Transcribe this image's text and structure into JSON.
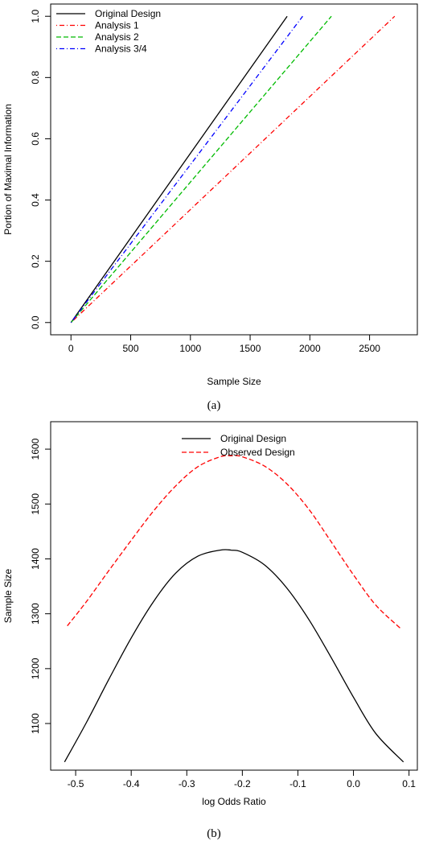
{
  "chart_data": [
    {
      "type": "line",
      "panel_label": "(a)",
      "xlabel": "Sample Size",
      "ylabel": "Portion of Maximal Information",
      "xlim": [
        -170,
        2900
      ],
      "ylim": [
        -0.04,
        1.04
      ],
      "xticks": [
        0,
        500,
        1000,
        1500,
        2000,
        2500
      ],
      "yticks": [
        0.0,
        0.2,
        0.4,
        0.6,
        0.8,
        1.0
      ],
      "xtick_labels": [
        "0",
        "500",
        "1000",
        "1500",
        "2000",
        "2500"
      ],
      "ytick_labels": [
        "0.0",
        "0.2",
        "0.4",
        "0.6",
        "0.8",
        "1.0"
      ],
      "grid": false,
      "legend_position": "top-left",
      "series": [
        {
          "name": "Original Design",
          "color": "#000000",
          "dash": "solid",
          "x": [
            0,
            1810
          ],
          "y": [
            0,
            1.0
          ]
        },
        {
          "name": "Analysis 1",
          "color": "#ff0000",
          "dash": "dotdash",
          "x": [
            0,
            2710
          ],
          "y": [
            0,
            1.0
          ]
        },
        {
          "name": "Analysis 2",
          "color": "#00bb00",
          "dash": "dashed",
          "x": [
            0,
            2180
          ],
          "y": [
            0,
            1.0
          ]
        },
        {
          "name": "Analysis 3/4",
          "color": "#0000ff",
          "dash": "dotdash",
          "x": [
            0,
            1940
          ],
          "y": [
            0,
            1.0
          ]
        }
      ]
    },
    {
      "type": "line",
      "panel_label": "(b)",
      "xlabel": "log Odds Ratio",
      "ylabel": "Sample Size",
      "xlim": [
        -0.545,
        0.115
      ],
      "ylim": [
        1015,
        1650
      ],
      "xticks": [
        -0.5,
        -0.4,
        -0.3,
        -0.2,
        -0.1,
        0.0,
        0.1
      ],
      "yticks": [
        1100,
        1200,
        1300,
        1400,
        1500,
        1600
      ],
      "xtick_labels": [
        "-0.5",
        "-0.4",
        "-0.3",
        "-0.2",
        "-0.1",
        "0.0",
        "0.1"
      ],
      "ytick_labels": [
        "1100",
        "1200",
        "1300",
        "1400",
        "1500",
        "1600"
      ],
      "grid": false,
      "legend_position": "top-center",
      "series": [
        {
          "name": "Original Design",
          "color": "#000000",
          "dash": "solid",
          "x": [
            -0.52,
            -0.48,
            -0.44,
            -0.4,
            -0.36,
            -0.32,
            -0.28,
            -0.24,
            -0.22,
            -0.2,
            -0.16,
            -0.12,
            -0.08,
            -0.04,
            0.0,
            0.04,
            0.09
          ],
          "y": [
            1030,
            1103,
            1181,
            1256,
            1322,
            1374,
            1405,
            1416,
            1416,
            1412,
            1389,
            1347,
            1289,
            1220,
            1148,
            1082,
            1030
          ]
        },
        {
          "name": "Observed Design",
          "color": "#ff0000",
          "dash": "dashed",
          "x": [
            -0.515,
            -0.48,
            -0.44,
            -0.4,
            -0.36,
            -0.32,
            -0.28,
            -0.24,
            -0.22,
            -0.2,
            -0.16,
            -0.12,
            -0.08,
            -0.04,
            0.0,
            0.04,
            0.085
          ],
          "y": [
            1278,
            1323,
            1379,
            1434,
            1487,
            1533,
            1568,
            1586,
            1588,
            1586,
            1569,
            1537,
            1490,
            1431,
            1371,
            1316,
            1273
          ]
        }
      ]
    }
  ]
}
